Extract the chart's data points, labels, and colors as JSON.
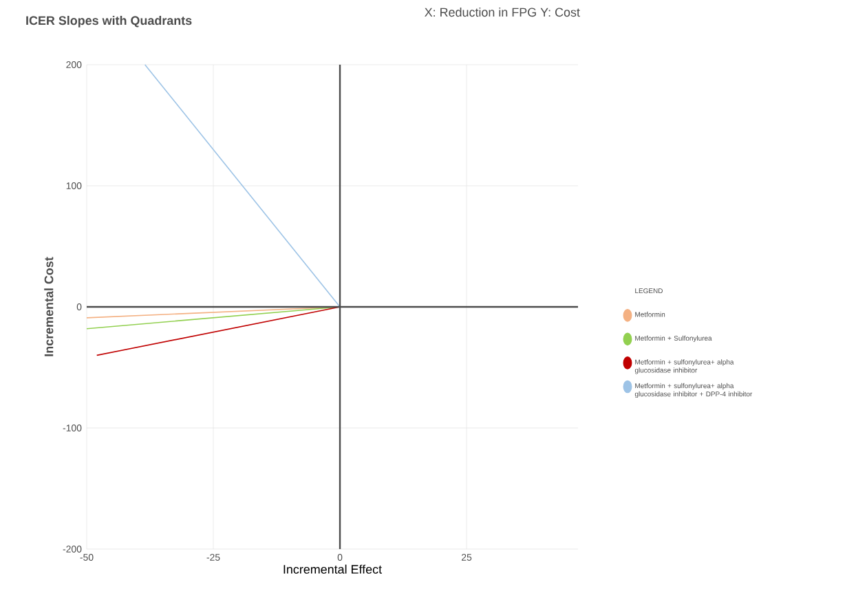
{
  "chart_data": {
    "type": "line",
    "title": "ICER Slopes with Quadrants",
    "annotations": [
      "X: Reduction in FPG   Y: Cost"
    ],
    "xlabel": "Incremental Effect",
    "ylabel": "Incremental Cost",
    "legend_title": "LEGEND",
    "xlim": [
      -50,
      47
    ],
    "ylim": [
      -200,
      200
    ],
    "xticks": [
      -50,
      -25,
      0,
      25
    ],
    "yticks": [
      -200,
      -100,
      0,
      100,
      200
    ],
    "grid": true,
    "legend": "right",
    "marker": "none",
    "line_style": "solid",
    "series": [
      {
        "name": "Metformin",
        "color": "#f4b183",
        "x": [
          -50,
          0
        ],
        "values": [
          -9,
          0
        ]
      },
      {
        "name": "Metformin + Sulfonylurea",
        "color": "#92d050",
        "x": [
          -50,
          0
        ],
        "values": [
          -18,
          0
        ]
      },
      {
        "name": "Metformin + sulfonylurea+ alpha glucosidase inhibitor",
        "color": "#c00000",
        "x": [
          -48,
          0
        ],
        "values": [
          -40,
          0
        ]
      },
      {
        "name": "Metformin + sulfonylurea+ alpha glucosidase inhibitor + DPP-4 inhibitor",
        "color": "#9dc3e6",
        "x": [
          -38.5,
          0
        ],
        "values": [
          200,
          0
        ]
      }
    ]
  }
}
